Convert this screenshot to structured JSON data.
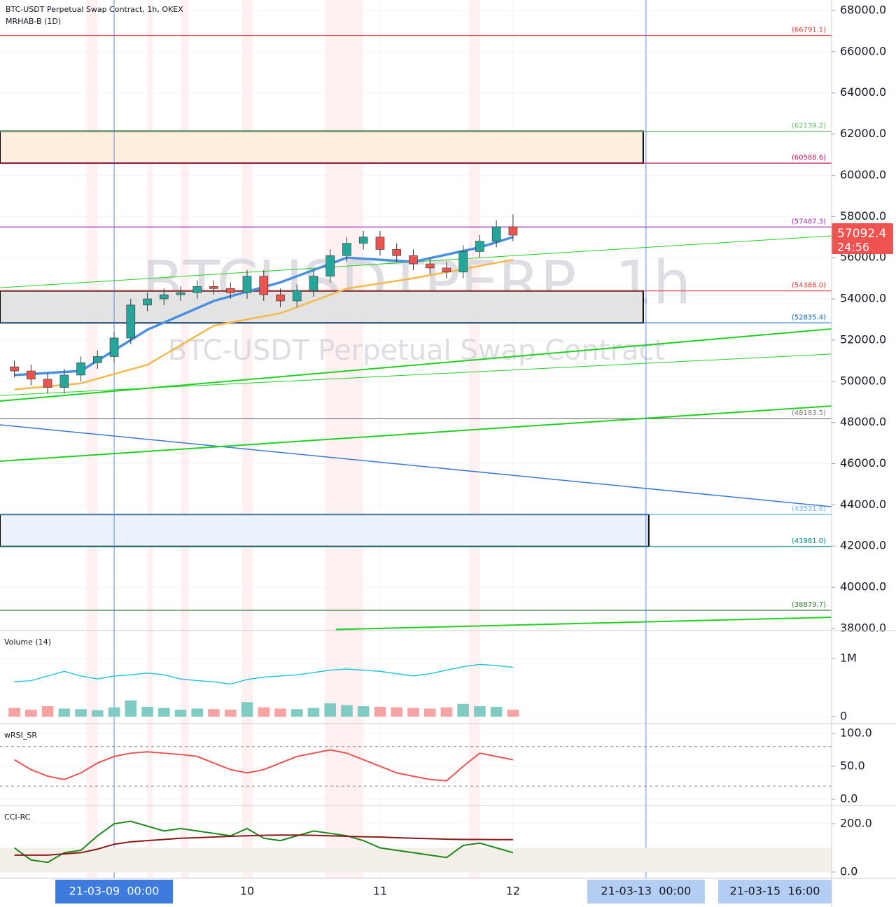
{
  "chart_data": [
    {
      "type": "candlestick",
      "title": "BTC-USDT Perpetual Swap Contract, 1h, OKEX",
      "subtitle": "MRHAB-B (1D)",
      "watermark": "BTCUSDTPERP, 1h",
      "watermark_subtitle": "BTC-USDT Perpetual Swap Contract",
      "countdown": "24:56",
      "x": [
        -18,
        -15,
        -12,
        -9,
        -6,
        -3,
        0,
        3,
        6,
        9,
        12,
        15,
        18,
        21,
        24,
        27,
        30,
        33,
        36,
        39,
        42,
        45,
        48,
        51,
        54,
        57,
        60,
        63,
        66,
        69,
        72
      ],
      "open": [
        50700,
        50500,
        50100,
        49700,
        50300,
        50900,
        51200,
        52100,
        53700,
        54000,
        54200,
        54300,
        54600,
        54500,
        54300,
        55100,
        54200,
        53900,
        54400,
        55100,
        56100,
        56700,
        57000,
        56400,
        56100,
        55700,
        55500,
        55300,
        56300,
        56800,
        57500
      ],
      "high": [
        51000,
        50800,
        50400,
        50600,
        51200,
        51500,
        52400,
        54000,
        54300,
        54500,
        54600,
        54900,
        54900,
        54800,
        55400,
        55400,
        54500,
        54700,
        55400,
        56400,
        57000,
        57300,
        57300,
        56700,
        56400,
        56000,
        55800,
        56600,
        57100,
        57800,
        58100
      ],
      "low": [
        50200,
        49800,
        49400,
        49400,
        50000,
        50600,
        50900,
        51800,
        53400,
        53700,
        53900,
        54000,
        54200,
        54000,
        54000,
        53900,
        53600,
        53600,
        54100,
        54800,
        55800,
        56400,
        56100,
        55800,
        55400,
        55200,
        55000,
        55000,
        56000,
        56500,
        56800
      ],
      "close": [
        50500,
        50100,
        49700,
        50300,
        50900,
        51200,
        52100,
        53700,
        54000,
        54200,
        54300,
        54600,
        54500,
        54300,
        55100,
        54200,
        53900,
        54400,
        55100,
        56100,
        56700,
        57000,
        56400,
        56100,
        55700,
        55500,
        55300,
        56300,
        56800,
        57500,
        57092.4
      ],
      "up_color": "#26a69a",
      "down_color": "#ef5350",
      "xlim": [
        -20.6,
        129.5
      ],
      "ylim": [
        37930,
        68510
      ],
      "xticks": [
        {
          "value": 0,
          "label": "21-03-09  00:00"
        },
        {
          "value": 24,
          "label": "10"
        },
        {
          "value": 48,
          "label": "11"
        },
        {
          "value": 72,
          "label": "12"
        },
        {
          "value": 96,
          "label": "21-03-13  00:00"
        }
      ],
      "extra_time_labels": [
        "21-03-15  16:00"
      ],
      "yticks": [
        {
          "value": 38000,
          "label": "38000.0"
        },
        {
          "value": 40000,
          "label": "40000.0"
        },
        {
          "value": 42000,
          "label": "42000.0"
        },
        {
          "value": 44000,
          "label": "44000.0"
        },
        {
          "value": 46000,
          "label": "46000.0"
        },
        {
          "value": 48000,
          "label": "48000.0"
        },
        {
          "value": 50000,
          "label": "50000.0"
        },
        {
          "value": 52000,
          "label": "52000.0"
        },
        {
          "value": 54000,
          "label": "54000.0"
        },
        {
          "value": 56000,
          "label": "56000.0"
        },
        {
          "value": 58000,
          "label": "58000.0"
        },
        {
          "value": 60000,
          "label": "60000.0"
        },
        {
          "value": 62000,
          "label": "62000.0"
        },
        {
          "value": 64000,
          "label": "64000.0"
        },
        {
          "value": 66000,
          "label": "66000.0"
        },
        {
          "value": 68000,
          "label": "68000.0"
        }
      ],
      "levels": [
        {
          "value": 66791.1,
          "label": "(66791.1)",
          "color": "#e53935"
        },
        {
          "value": 62139.2,
          "label": "(62139.2)",
          "color": "#66bb6a"
        },
        {
          "value": 60588.6,
          "label": "(60588.6)",
          "color": "#c2185b"
        },
        {
          "value": 57487.3,
          "label": "(57487.3)",
          "color": "#9c27b0"
        },
        {
          "value": 54386.0,
          "label": "(54386.0)",
          "color": "#e53935"
        },
        {
          "value": 52835.4,
          "label": "(52835.4)",
          "color": "#1565c0"
        },
        {
          "value": 48183.5,
          "label": "(48183.5)",
          "color": "#777777"
        },
        {
          "value": 43531.6,
          "label": "(43531.6)",
          "color": "#64b5f6"
        },
        {
          "value": 41981.0,
          "label": "(41981.0)",
          "color": "#00897b"
        },
        {
          "value": 38879.7,
          "label": "(38879.7)",
          "color": "#2e7d32"
        }
      ],
      "zones": [
        {
          "from": 60588.6,
          "to": 62139.2,
          "x_end": 95.5,
          "fill": "#fdeedd"
        },
        {
          "from": 52835.4,
          "to": 54386.0,
          "x_end": 95.5,
          "fill": "#e3e3e3"
        },
        {
          "from": 41981.0,
          "to": 43531.6,
          "x_end": 96.5,
          "fill": "#ebf2fd"
        }
      ],
      "overlay_x": [
        -18,
        -6,
        6,
        18,
        30,
        42,
        54,
        66,
        72
      ],
      "overlays": [
        {
          "color": "#4a90e2",
          "values": [
            50300,
            50500,
            52500,
            53900,
            54800,
            56000,
            55800,
            56500,
            57000
          ]
        },
        {
          "color": "#f5b94a",
          "values": [
            49600,
            49900,
            50800,
            52700,
            53300,
            54500,
            55000,
            55600,
            55900
          ]
        }
      ],
      "trendlines": [
        {
          "color": "#3b78d8",
          "width": 1.5,
          "x": [
            -20.6,
            129.5
          ],
          "y": [
            47885,
            43909
          ]
        },
        {
          "color": "#22d022",
          "width": 2,
          "x": [
            -20.6,
            129.5
          ],
          "y": [
            46120,
            48800
          ]
        },
        {
          "color": "#22d022",
          "width": 2,
          "x": [
            -20.6,
            129.5
          ],
          "y": [
            49040,
            52540
          ]
        },
        {
          "color": "#22d022",
          "width": 1,
          "x": [
            -20.6,
            129.5
          ],
          "y": [
            49310,
            51320
          ]
        },
        {
          "color": "#22d022",
          "width": 1,
          "x": [
            -20.6,
            129.5
          ],
          "y": [
            54540,
            57060
          ]
        },
        {
          "color": "#22d022",
          "width": 2,
          "x": [
            40,
            129.5
          ],
          "y": [
            37950,
            38540
          ]
        }
      ],
      "vlines": [
        0,
        96
      ],
      "highlights": [
        [
          -5,
          -3
        ],
        [
          6,
          7
        ],
        [
          12,
          13.5
        ],
        [
          23,
          25
        ],
        [
          38,
          45
        ],
        [
          64,
          66
        ]
      ]
    },
    {
      "type": "bar",
      "title": "Volume (14)",
      "values": [
        150000,
        120000,
        180000,
        140000,
        130000,
        110000,
        160000,
        280000,
        170000,
        150000,
        120000,
        140000,
        130000,
        120000,
        250000,
        160000,
        140000,
        130000,
        150000,
        230000,
        200000,
        180000,
        170000,
        160000,
        150000,
        140000,
        160000,
        220000,
        180000,
        170000,
        120000
      ],
      "ma_values": [
        600000,
        620000,
        700000,
        780000,
        700000,
        650000,
        700000,
        720000,
        750000,
        720000,
        650000,
        620000,
        600000,
        560000,
        640000,
        680000,
        700000,
        720000,
        760000,
        800000,
        820000,
        800000,
        780000,
        740000,
        700000,
        740000,
        800000,
        860000,
        900000,
        880000,
        850000
      ],
      "ma_color": "#26c6da",
      "ylim": [
        -108000,
        1470000
      ],
      "yticks": [
        0,
        {
          "value": 1000000,
          "label": "1M"
        }
      ]
    },
    {
      "type": "line",
      "title": "wRSI_SR",
      "lines": [
        {
          "color": "#ef5350",
          "values": [
            60,
            45,
            35,
            30,
            40,
            55,
            65,
            70,
            72,
            70,
            68,
            65,
            55,
            45,
            40,
            45,
            55,
            65,
            70,
            75,
            70,
            60,
            50,
            40,
            35,
            30,
            28,
            50,
            70,
            65,
            60
          ]
        }
      ],
      "dashed_levels": [
        20,
        80
      ],
      "ylim": [
        -8.5,
        113.8
      ],
      "yticks": [
        {
          "value": 0,
          "label": "0.0"
        },
        {
          "value": 50,
          "label": "50.0"
        },
        {
          "value": 100,
          "label": "100.0"
        }
      ]
    },
    {
      "type": "line",
      "title": "CCI-RC",
      "lines": [
        {
          "color": "#1b8a1b",
          "values": [
            100,
            50,
            40,
            80,
            90,
            150,
            200,
            210,
            190,
            170,
            180,
            170,
            160,
            150,
            180,
            140,
            130,
            150,
            170,
            160,
            150,
            130,
            100,
            90,
            80,
            70,
            60,
            110,
            120,
            100,
            80
          ]
        },
        {
          "color": "#8b1a1a",
          "values": [
            70,
            70,
            70,
            75,
            80,
            95,
            115,
            125,
            130,
            135,
            140,
            142,
            145,
            148,
            150,
            152,
            153,
            153,
            152,
            150,
            148,
            146,
            145,
            142,
            140,
            138,
            136,
            135,
            135,
            134,
            134
          ]
        }
      ],
      "band": [
        0,
        100
      ],
      "band_color": "#f3efe6",
      "ylim": [
        -26,
        272.5
      ],
      "yticks": [
        {
          "value": 0,
          "label": "0.0"
        },
        {
          "value": 200,
          "label": "200.0"
        }
      ]
    }
  ]
}
